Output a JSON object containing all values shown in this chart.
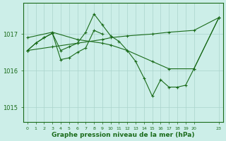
{
  "bg_color": "#cceee8",
  "line_color": "#1a6b1a",
  "grid_color": "#aad4cc",
  "xlabel_label": "Graphe pression niveau de la mer (hPa)",
  "xlim": [
    -0.5,
    23.5
  ],
  "ylim": [
    1014.6,
    1017.85
  ],
  "yticks": [
    1015,
    1016,
    1017
  ],
  "series": [
    {
      "x": [
        0,
        1,
        2,
        3,
        4,
        5,
        6,
        7,
        8,
        9,
        10,
        11,
        12,
        13,
        14,
        15,
        16,
        17,
        18,
        19,
        20,
        23
      ],
      "y": [
        1016.55,
        1016.75,
        1016.9,
        1017.02,
        1016.55,
        1016.65,
        1016.75,
        1017.05,
        1017.55,
        1017.25,
        1016.95,
        1016.8,
        1016.55,
        1016.25,
        1015.8,
        1015.3,
        1015.75,
        1015.55,
        1015.55,
        1015.6,
        1016.05,
        1017.45
      ]
    },
    {
      "x": [
        0,
        3,
        6,
        9,
        10,
        12,
        15,
        17,
        20,
        23
      ],
      "y": [
        1016.9,
        1017.05,
        1016.85,
        1016.75,
        1016.7,
        1016.55,
        1016.25,
        1016.05,
        1016.05,
        1017.45
      ]
    },
    {
      "x": [
        0,
        3,
        6,
        9,
        10,
        12,
        15,
        17,
        20,
        23
      ],
      "y": [
        1016.55,
        1016.65,
        1016.75,
        1016.85,
        1016.9,
        1016.95,
        1017.0,
        1017.05,
        1017.1,
        1017.45
      ]
    },
    {
      "x": [
        0,
        1,
        2,
        3,
        4,
        5,
        6,
        7,
        8,
        9
      ],
      "y": [
        1016.55,
        1016.75,
        1016.9,
        1017.02,
        1016.3,
        1016.35,
        1016.5,
        1016.62,
        1017.1,
        1017.0
      ]
    }
  ]
}
